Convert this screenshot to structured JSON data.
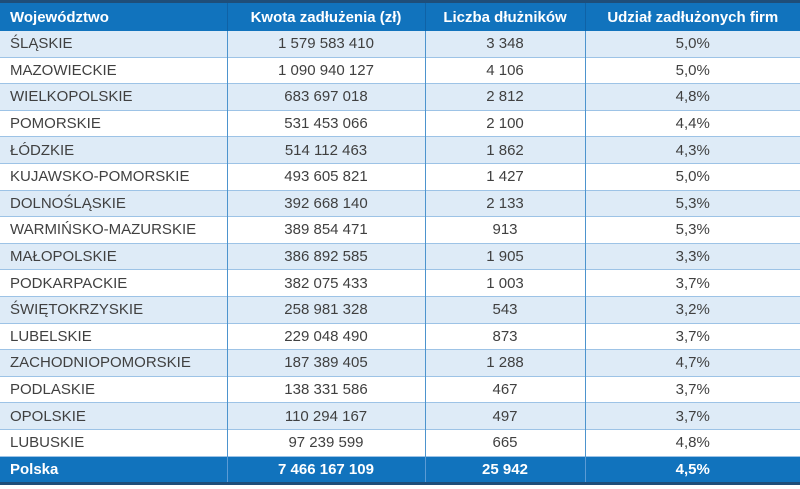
{
  "table": {
    "column_keys": [
      "wojewodztwo",
      "kwota-zadluzenia",
      "liczba-dluznikow",
      "udzial-zadluzonych-firm"
    ],
    "headers": [
      "Województwo",
      "Kwota zadłużenia (zł)",
      "Liczba dłużników",
      "Udział zadłużonych firm"
    ],
    "rows": [
      [
        "ŚLĄSKIE",
        "1 579 583 410",
        "3 348",
        "5,0%"
      ],
      [
        "MAZOWIECKIE",
        "1 090 940 127",
        "4 106",
        "5,0%"
      ],
      [
        "WIELKOPOLSKIE",
        "683 697 018",
        "2 812",
        "4,8%"
      ],
      [
        "POMORSKIE",
        "531 453 066",
        "2 100",
        "4,4%"
      ],
      [
        "ŁÓDZKIE",
        "514 112 463",
        "1 862",
        "4,3%"
      ],
      [
        "KUJAWSKO-POMORSKIE",
        "493 605 821",
        "1 427",
        "5,0%"
      ],
      [
        "DOLNOŚLĄSKIE",
        "392 668 140",
        "2 133",
        "5,3%"
      ],
      [
        "WARMIŃSKO-MAZURSKIE",
        "389 854 471",
        "913",
        "5,3%"
      ],
      [
        "MAŁOPOLSKIE",
        "386 892 585",
        "1 905",
        "3,3%"
      ],
      [
        "PODKARPACKIE",
        "382 075 433",
        "1 003",
        "3,7%"
      ],
      [
        "ŚWIĘTOKRZYSKIE",
        "258 981 328",
        "543",
        "3,2%"
      ],
      [
        "LUBELSKIE",
        "229 048 490",
        "873",
        "3,7%"
      ],
      [
        "ZACHODNIOPOMORSKIE",
        "187 389 405",
        "1 288",
        "4,7%"
      ],
      [
        "PODLASKIE",
        "138 331 586",
        "467",
        "3,7%"
      ],
      [
        "OPOLSKIE",
        "110 294 167",
        "497",
        "3,7%"
      ],
      [
        "LUBUSKIE",
        "97 239 599",
        "665",
        "4,8%"
      ]
    ],
    "footer": [
      "Polska",
      "7 466 167 109",
      "25 942",
      "4,5%"
    ]
  },
  "colors": {
    "header_bg": "#1173BD",
    "header_text": "#FFFFFF",
    "header_divider": "#0F62A6",
    "border_dark": "#1F4E79",
    "row_alt_bg": "#DEEBF7",
    "row_bg": "#FFFFFF",
    "grid_horizontal": "#9DC3E6",
    "grid_vertical": "#4D94CE",
    "footer_divider": "#5B9BD5",
    "text": "#404040"
  },
  "chart_data": {
    "type": "table",
    "columns": [
      "Województwo",
      "Kwota zadłużenia (zł)",
      "Liczba dłużników",
      "Udział zadłużonych firm"
    ],
    "rows": [
      {
        "wojewodztwo": "ŚLĄSKIE",
        "kwota_zadluzenia_zl": 1579583410,
        "liczba_dluznikow": 3348,
        "udzial_zadluzonych_firm_pct": 5.0
      },
      {
        "wojewodztwo": "MAZOWIECKIE",
        "kwota_zadluzenia_zl": 1090940127,
        "liczba_dluznikow": 4106,
        "udzial_zadluzonych_firm_pct": 5.0
      },
      {
        "wojewodztwo": "WIELKOPOLSKIE",
        "kwota_zadluzenia_zl": 683697018,
        "liczba_dluznikow": 2812,
        "udzial_zadluzonych_firm_pct": 4.8
      },
      {
        "wojewodztwo": "POMORSKIE",
        "kwota_zadluzenia_zl": 531453066,
        "liczba_dluznikow": 2100,
        "udzial_zadluzonych_firm_pct": 4.4
      },
      {
        "wojewodztwo": "ŁÓDZKIE",
        "kwota_zadluzenia_zl": 514112463,
        "liczba_dluznikow": 1862,
        "udzial_zadluzonych_firm_pct": 4.3
      },
      {
        "wojewodztwo": "KUJAWSKO-POMORSKIE",
        "kwota_zadluzenia_zl": 493605821,
        "liczba_dluznikow": 1427,
        "udzial_zadluzonych_firm_pct": 5.0
      },
      {
        "wojewodztwo": "DOLNOŚLĄSKIE",
        "kwota_zadluzenia_zl": 392668140,
        "liczba_dluznikow": 2133,
        "udzial_zadluzonych_firm_pct": 5.3
      },
      {
        "wojewodztwo": "WARMIŃSKO-MAZURSKIE",
        "kwota_zadluzenia_zl": 389854471,
        "liczba_dluznikow": 913,
        "udzial_zadluzonych_firm_pct": 5.3
      },
      {
        "wojewodztwo": "MAŁOPOLSKIE",
        "kwota_zadluzenia_zl": 386892585,
        "liczba_dluznikow": 1905,
        "udzial_zadluzonych_firm_pct": 3.3
      },
      {
        "wojewodztwo": "PODKARPACKIE",
        "kwota_zadluzenia_zl": 382075433,
        "liczba_dluznikow": 1003,
        "udzial_zadluzonych_firm_pct": 3.7
      },
      {
        "wojewodztwo": "ŚWIĘTOKRZYSKIE",
        "kwota_zadluzenia_zl": 258981328,
        "liczba_dluznikow": 543,
        "udzial_zadluzonych_firm_pct": 3.2
      },
      {
        "wojewodztwo": "LUBELSKIE",
        "kwota_zadluzenia_zl": 229048490,
        "liczba_dluznikow": 873,
        "udzial_zadluzonych_firm_pct": 3.7
      },
      {
        "wojewodztwo": "ZACHODNIOPOMORSKIE",
        "kwota_zadluzenia_zl": 187389405,
        "liczba_dluznikow": 1288,
        "udzial_zadluzonych_firm_pct": 4.7
      },
      {
        "wojewodztwo": "PODLASKIE",
        "kwota_zadluzenia_zl": 138331586,
        "liczba_dluznikow": 467,
        "udzial_zadluzonych_firm_pct": 3.7
      },
      {
        "wojewodztwo": "OPOLSKIE",
        "kwota_zadluzenia_zl": 110294167,
        "liczba_dluznikow": 497,
        "udzial_zadluzonych_firm_pct": 3.7
      },
      {
        "wojewodztwo": "LUBUSKIE",
        "kwota_zadluzenia_zl": 97239599,
        "liczba_dluznikow": 665,
        "udzial_zadluzonych_firm_pct": 4.8
      }
    ],
    "total_row": {
      "wojewodztwo": "Polska",
      "kwota_zadluzenia_zl": 7466167109,
      "liczba_dluznikow": 25942,
      "udzial_zadluzonych_firm_pct": 4.5
    }
  }
}
